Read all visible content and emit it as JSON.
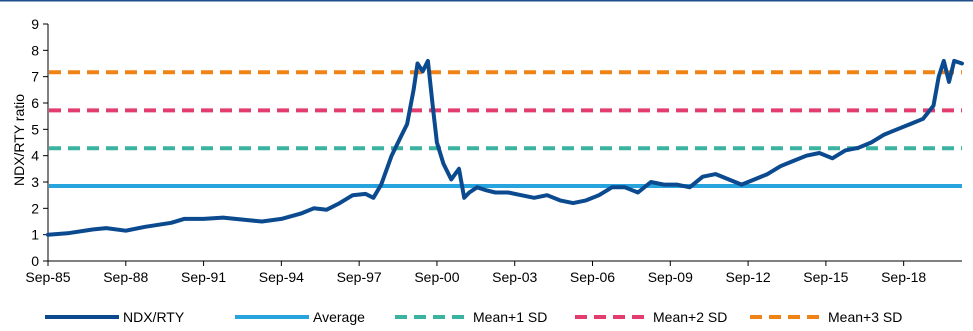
{
  "chart_data": {
    "type": "line",
    "title": "",
    "ylabel": "NDX/RTY ratio",
    "xlabel": "",
    "ylim": [
      0,
      9
    ],
    "yticks": [
      0,
      1,
      2,
      3,
      4,
      5,
      6,
      7,
      8,
      9
    ],
    "xlim": [
      1985.75,
      2021.0
    ],
    "x_tick_labels": [
      "Sep-85",
      "Sep-88",
      "Sep-91",
      "Sep-94",
      "Sep-97",
      "Sep-00",
      "Sep-03",
      "Sep-06",
      "Sep-09",
      "Sep-12",
      "Sep-15",
      "Sep-18"
    ],
    "x_tick_years": [
      1985.75,
      1988.75,
      1991.75,
      1994.75,
      1997.75,
      2000.75,
      2003.75,
      2006.75,
      2009.75,
      2012.75,
      2015.75,
      2018.75
    ],
    "grid": false,
    "legend_position": "bottom",
    "series": [
      {
        "name": "NDX/RTY",
        "color": "#0b4a8f",
        "style": "solid",
        "x": [
          1985.75,
          1986.5,
          1987.5,
          1988.0,
          1988.75,
          1989.5,
          1990.5,
          1991.0,
          1991.75,
          1992.5,
          1993.5,
          1994.0,
          1994.75,
          1995.5,
          1996.0,
          1996.5,
          1997.0,
          1997.5,
          1998.0,
          1998.3,
          1998.6,
          1999.0,
          1999.3,
          1999.6,
          1999.85,
          2000.0,
          2000.2,
          2000.4,
          2000.6,
          2000.75,
          2001.0,
          2001.3,
          2001.6,
          2001.8,
          2002.0,
          2002.3,
          2002.6,
          2003.0,
          2003.5,
          2004.0,
          2004.5,
          2005.0,
          2005.5,
          2006.0,
          2006.5,
          2007.0,
          2007.5,
          2008.0,
          2008.5,
          2009.0,
          2009.5,
          2010.0,
          2010.5,
          2011.0,
          2011.5,
          2012.0,
          2012.5,
          2013.0,
          2013.5,
          2014.0,
          2014.5,
          2015.0,
          2015.5,
          2016.0,
          2016.5,
          2017.0,
          2017.5,
          2018.0,
          2018.5,
          2019.0,
          2019.5,
          2019.9,
          2020.1,
          2020.3,
          2020.5,
          2020.7,
          2021.0
        ],
        "values": [
          1.0,
          1.05,
          1.2,
          1.25,
          1.15,
          1.3,
          1.45,
          1.6,
          1.6,
          1.65,
          1.55,
          1.5,
          1.6,
          1.8,
          2.0,
          1.95,
          2.2,
          2.5,
          2.55,
          2.4,
          2.9,
          4.0,
          4.6,
          5.2,
          6.5,
          7.5,
          7.2,
          7.6,
          5.8,
          4.5,
          3.7,
          3.1,
          3.5,
          2.4,
          2.6,
          2.8,
          2.7,
          2.6,
          2.6,
          2.5,
          2.4,
          2.5,
          2.3,
          2.2,
          2.3,
          2.5,
          2.8,
          2.8,
          2.6,
          3.0,
          2.9,
          2.9,
          2.8,
          3.2,
          3.3,
          3.1,
          2.9,
          3.1,
          3.3,
          3.6,
          3.8,
          4.0,
          4.1,
          3.9,
          4.2,
          4.3,
          4.5,
          4.8,
          5.0,
          5.2,
          5.4,
          5.9,
          7.0,
          7.6,
          6.8,
          7.6,
          7.5
        ]
      },
      {
        "name": "Average",
        "color": "#27a3dd",
        "style": "solid",
        "value": 2.85
      },
      {
        "name": "Mean+1 SD",
        "color": "#3bb3a1",
        "style": "dashed",
        "value": 4.28
      },
      {
        "name": "Mean+2 SD",
        "color": "#e23d6e",
        "style": "dashed",
        "value": 5.72
      },
      {
        "name": "Mean+3 SD",
        "color": "#f08316",
        "style": "dashed",
        "value": 7.17
      }
    ]
  }
}
